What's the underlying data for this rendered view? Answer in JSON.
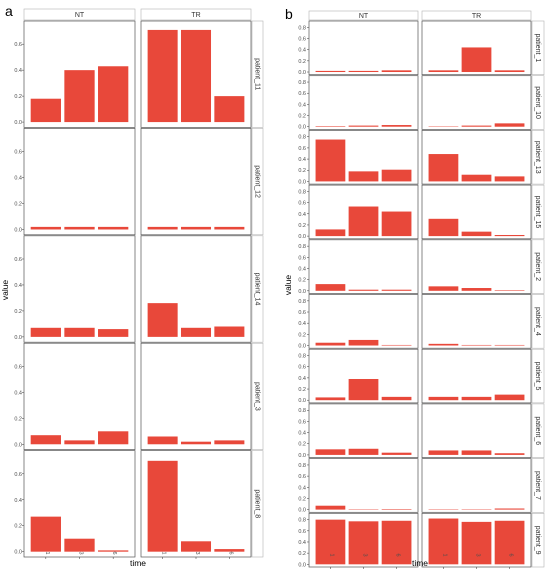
{
  "chart_data": [
    {
      "type": "bar",
      "panel_label": "a",
      "facet_columns": [
        "NT",
        "TR"
      ],
      "facet_rows": [
        "patient_11",
        "patient_12",
        "patient_14",
        "patient_3",
        "patient_8"
      ],
      "categories": [
        "1",
        "3",
        "6"
      ],
      "xlabel": "time",
      "ylabel": "value",
      "ylim": [
        0,
        0.75
      ],
      "yticks": [
        "0.0",
        "0.2",
        "0.4",
        "0.6"
      ],
      "bar_color": "#E8483A",
      "grid": false,
      "facets": [
        {
          "row": "patient_11",
          "col": "NT",
          "values": [
            0.18,
            0.4,
            0.43
          ]
        },
        {
          "row": "patient_11",
          "col": "TR",
          "values": [
            0.71,
            0.71,
            0.2
          ]
        },
        {
          "row": "patient_12",
          "col": "NT",
          "values": [
            0.02,
            0.02,
            0.02
          ]
        },
        {
          "row": "patient_12",
          "col": "TR",
          "values": [
            0.02,
            0.02,
            0.02
          ]
        },
        {
          "row": "patient_14",
          "col": "NT",
          "values": [
            0.07,
            0.07,
            0.06
          ]
        },
        {
          "row": "patient_14",
          "col": "TR",
          "values": [
            0.26,
            0.07,
            0.08
          ]
        },
        {
          "row": "patient_3",
          "col": "NT",
          "values": [
            0.07,
            0.03,
            0.1
          ]
        },
        {
          "row": "patient_3",
          "col": "TR",
          "values": [
            0.06,
            0.02,
            0.03
          ]
        },
        {
          "row": "patient_8",
          "col": "NT",
          "values": [
            0.27,
            0.1,
            0.01
          ]
        },
        {
          "row": "patient_8",
          "col": "TR",
          "values": [
            0.7,
            0.08,
            0.02
          ]
        }
      ]
    },
    {
      "type": "bar",
      "panel_label": "b",
      "facet_columns": [
        "NT",
        "TR"
      ],
      "facet_rows": [
        "patient_1",
        "patient_10",
        "patient_13",
        "patient_15",
        "patient_2",
        "patient_4",
        "patient_5",
        "patient_6",
        "patient_7",
        "patient_9"
      ],
      "categories": [
        "1",
        "3",
        "6"
      ],
      "xlabel": "time",
      "ylabel": "value",
      "ylim": [
        0,
        0.88
      ],
      "yticks": [
        "0.0",
        "0.2",
        "0.4",
        "0.6",
        "0.8"
      ],
      "bar_color": "#E8483A",
      "grid": false,
      "facets": [
        {
          "row": "patient_1",
          "col": "NT",
          "values": [
            0.02,
            0.02,
            0.03
          ]
        },
        {
          "row": "patient_1",
          "col": "TR",
          "values": [
            0.03,
            0.44,
            0.03
          ]
        },
        {
          "row": "patient_10",
          "col": "NT",
          "values": [
            0.01,
            0.02,
            0.03
          ]
        },
        {
          "row": "patient_10",
          "col": "TR",
          "values": [
            0.0,
            0.02,
            0.06
          ]
        },
        {
          "row": "patient_13",
          "col": "NT",
          "values": [
            0.75,
            0.18,
            0.21
          ]
        },
        {
          "row": "patient_13",
          "col": "TR",
          "values": [
            0.49,
            0.12,
            0.09
          ]
        },
        {
          "row": "patient_15",
          "col": "NT",
          "values": [
            0.12,
            0.53,
            0.44
          ]
        },
        {
          "row": "patient_15",
          "col": "TR",
          "values": [
            0.31,
            0.08,
            0.02
          ]
        },
        {
          "row": "patient_2",
          "col": "NT",
          "values": [
            0.12,
            0.02,
            0.02
          ]
        },
        {
          "row": "patient_2",
          "col": "TR",
          "values": [
            0.08,
            0.05,
            0.01
          ]
        },
        {
          "row": "patient_4",
          "col": "NT",
          "values": [
            0.05,
            0.1,
            0.01
          ]
        },
        {
          "row": "patient_4",
          "col": "TR",
          "values": [
            0.03,
            0.01,
            0.01
          ]
        },
        {
          "row": "patient_5",
          "col": "NT",
          "values": [
            0.05,
            0.38,
            0.06
          ]
        },
        {
          "row": "patient_5",
          "col": "TR",
          "values": [
            0.06,
            0.06,
            0.1
          ]
        },
        {
          "row": "patient_6",
          "col": "NT",
          "values": [
            0.1,
            0.11,
            0.04
          ]
        },
        {
          "row": "patient_6",
          "col": "TR",
          "values": [
            0.08,
            0.08,
            0.03
          ]
        },
        {
          "row": "patient_7",
          "col": "NT",
          "values": [
            0.07,
            0.0,
            0.01
          ]
        },
        {
          "row": "patient_7",
          "col": "TR",
          "values": [
            0.0,
            0.0,
            0.02
          ]
        },
        {
          "row": "patient_9",
          "col": "NT",
          "values": [
            0.8,
            0.77,
            0.78
          ]
        },
        {
          "row": "patient_9",
          "col": "TR",
          "values": [
            0.82,
            0.76,
            0.78
          ]
        }
      ]
    }
  ]
}
